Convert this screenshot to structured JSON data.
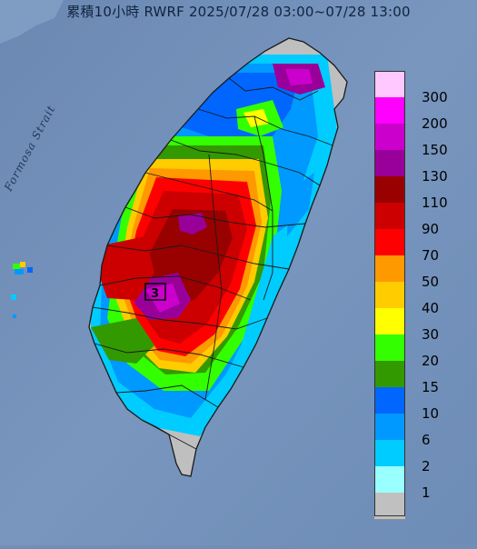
{
  "title": "累積10小時 RWRF 2025/07/28 03:00~07/28 13:00",
  "strait_label": "Formosa Strait",
  "station_marker": "3",
  "legend": {
    "levels": [
      {
        "label": "300",
        "color": "#ffc8ff"
      },
      {
        "label": "200",
        "color": "#ff00ff"
      },
      {
        "label": "150",
        "color": "#cc00cc"
      },
      {
        "label": "130",
        "color": "#990099"
      },
      {
        "label": "110",
        "color": "#990000"
      },
      {
        "label": "90",
        "color": "#cc0000"
      },
      {
        "label": "70",
        "color": "#ff0000"
      },
      {
        "label": "50",
        "color": "#ff9900"
      },
      {
        "label": "40",
        "color": "#ffcc00"
      },
      {
        "label": "30",
        "color": "#ffff00"
      },
      {
        "label": "20",
        "color": "#33ff00"
      },
      {
        "label": "15",
        "color": "#339900"
      },
      {
        "label": "10",
        "color": "#0066ff"
      },
      {
        "label": "6",
        "color": "#0099ff"
      },
      {
        "label": "2",
        "color": "#00ccff"
      },
      {
        "label": "1",
        "color": "#99ffff"
      },
      {
        "label": "",
        "color": "#c0c0c0"
      }
    ]
  },
  "colors": {
    "sea": "#6f8fb8",
    "land_dry": "#bfbfbf",
    "boundary": "#1a1a1a"
  }
}
